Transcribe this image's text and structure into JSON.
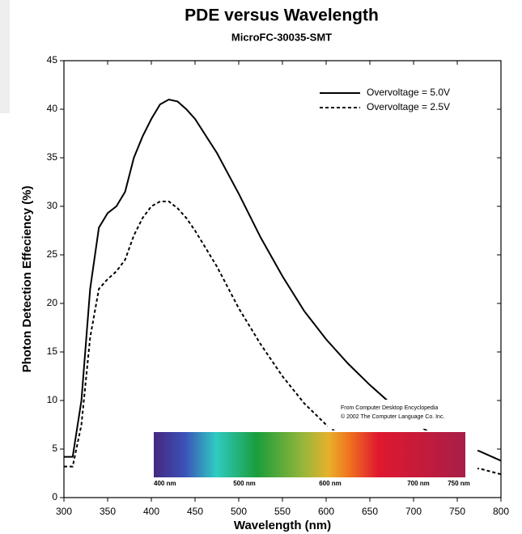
{
  "chart_data": {
    "type": "line",
    "title": "PDE versus Wavelength",
    "subtitle": "MicroFC-30035-SMT",
    "x_label": "Wavelength (nm)",
    "y_label": "Photon Detection Effeciency (%)",
    "x": [
      300,
      310,
      320,
      330,
      340,
      350,
      360,
      370,
      380,
      390,
      400,
      410,
      420,
      430,
      440,
      450,
      475,
      500,
      525,
      550,
      575,
      600,
      625,
      650,
      675,
      700,
      725,
      750,
      775,
      800
    ],
    "series": [
      {
        "name": "Overvoltage = 5.0V",
        "color": "#000000",
        "dash": false,
        "values": [
          4.2,
          4.2,
          10,
          21.5,
          27.8,
          29.3,
          30,
          31.5,
          35,
          37.2,
          39,
          40.5,
          41,
          40.8,
          40,
          39,
          35.5,
          31.3,
          26.8,
          22.8,
          19.2,
          16.3,
          13.8,
          11.6,
          9.6,
          7.8,
          6.3,
          5.3,
          4.8,
          3.8
        ]
      },
      {
        "name": "Overvoltage = 2.5V",
        "color": "#000000",
        "dash": true,
        "values": [
          3.2,
          3.2,
          7.5,
          16.5,
          21.5,
          22.5,
          23.3,
          24.5,
          27,
          28.8,
          30,
          30.5,
          30.5,
          29.8,
          28.8,
          27.5,
          23.8,
          19.5,
          15.8,
          12.5,
          9.7,
          7.5,
          5.8,
          4.5,
          3.8,
          3.2,
          3,
          2.8,
          3,
          2.4
        ]
      }
    ],
    "xlim": [
      300,
      800
    ],
    "xticks": [
      300,
      350,
      400,
      450,
      500,
      550,
      600,
      650,
      700,
      750,
      800
    ],
    "ylim": [
      0,
      45
    ],
    "yticks": [
      0,
      5,
      10,
      15,
      20,
      25,
      30,
      35,
      40,
      45
    ],
    "inset": {
      "labels": [
        "400 nm",
        "500 nm",
        "600 nm",
        "700 nm",
        "750 nm"
      ],
      "credit": [
        "From Computer Desktop Encyclopedia",
        "© 2002 The Computer Language Co. Inc."
      ]
    }
  }
}
